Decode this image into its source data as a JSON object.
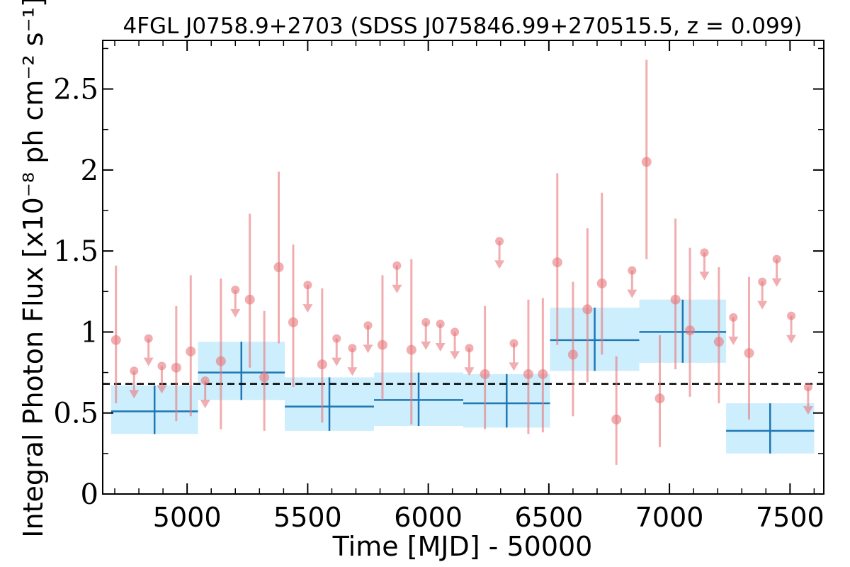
{
  "chart_data": {
    "type": "scatter",
    "title": "4FGL J0758.9+2703 (SDSS J075846.99+270515.5, z = 0.099)",
    "xlabel": "Time [MJD] - 50000",
    "ylabel": "Integral Photon Flux [x10⁻⁸ ph cm⁻² s⁻¹]",
    "xlim": [
      4650,
      7640
    ],
    "ylim": [
      0,
      2.8
    ],
    "x_ticks": [
      5000,
      5500,
      6000,
      6500,
      7000,
      7500
    ],
    "x_tick_labels": [
      "5000",
      "5500",
      "6000",
      "6500",
      "7000",
      "7500"
    ],
    "y_ticks": [
      0,
      0.5,
      1,
      1.5,
      2,
      2.5
    ],
    "y_tick_labels": [
      "0",
      "0.5",
      "1",
      "1.5",
      "2",
      "2.5"
    ],
    "reference_line": {
      "y": 0.68,
      "style": "dashed",
      "color": "#000000"
    },
    "colors": {
      "points": "#e8767a",
      "points_alpha": 0.6,
      "bins": "#1f77b4",
      "bin_fill": "#cdeefc"
    },
    "series": [
      {
        "kind": "detections",
        "points": [
          {
            "x": 4705,
            "y": 0.95,
            "lo": 0.56,
            "hi": 1.41
          },
          {
            "x": 4955,
            "y": 0.78,
            "lo": 0.45,
            "hi": 1.16
          },
          {
            "x": 5015,
            "y": 0.88,
            "lo": 0.48,
            "hi": 1.35
          },
          {
            "x": 5140,
            "y": 0.82,
            "lo": 0.4,
            "hi": 1.33
          },
          {
            "x": 5260,
            "y": 1.2,
            "lo": 0.78,
            "hi": 1.73
          },
          {
            "x": 5320,
            "y": 0.72,
            "lo": 0.39,
            "hi": 1.13
          },
          {
            "x": 5380,
            "y": 1.4,
            "lo": 0.93,
            "hi": 1.99
          },
          {
            "x": 5440,
            "y": 1.06,
            "lo": 0.66,
            "hi": 1.54
          },
          {
            "x": 5560,
            "y": 0.8,
            "lo": 0.44,
            "hi": 1.27
          },
          {
            "x": 5810,
            "y": 0.92,
            "lo": 0.58,
            "hi": 1.35
          },
          {
            "x": 5930,
            "y": 0.89,
            "lo": 0.43,
            "hi": 1.45
          },
          {
            "x": 6235,
            "y": 0.74,
            "lo": 0.4,
            "hi": 1.16
          },
          {
            "x": 6415,
            "y": 0.74,
            "lo": 0.37,
            "hi": 1.2
          },
          {
            "x": 6475,
            "y": 0.74,
            "lo": 0.38,
            "hi": 1.21
          },
          {
            "x": 6535,
            "y": 1.43,
            "lo": 0.92,
            "hi": 1.98
          },
          {
            "x": 6600,
            "y": 0.86,
            "lo": 0.48,
            "hi": 1.31
          },
          {
            "x": 6660,
            "y": 1.14,
            "lo": 0.69,
            "hi": 1.64
          },
          {
            "x": 6720,
            "y": 1.3,
            "lo": 0.86,
            "hi": 1.86
          },
          {
            "x": 6780,
            "y": 0.46,
            "lo": 0.18,
            "hi": 0.85
          },
          {
            "x": 6905,
            "y": 2.05,
            "lo": 1.45,
            "hi": 2.68
          },
          {
            "x": 6960,
            "y": 0.59,
            "lo": 0.29,
            "hi": 0.98
          },
          {
            "x": 7025,
            "y": 1.2,
            "lo": 0.77,
            "hi": 1.7
          },
          {
            "x": 7085,
            "y": 1.01,
            "lo": 0.6,
            "hi": 1.52
          },
          {
            "x": 7205,
            "y": 0.94,
            "lo": 0.56,
            "hi": 1.4
          },
          {
            "x": 7330,
            "y": 0.87,
            "lo": 0.46,
            "hi": 1.34
          }
        ]
      },
      {
        "kind": "upper_limits",
        "points": [
          {
            "x": 4780,
            "y": 0.76
          },
          {
            "x": 4840,
            "y": 0.96
          },
          {
            "x": 4895,
            "y": 0.79
          },
          {
            "x": 5075,
            "y": 0.7
          },
          {
            "x": 5200,
            "y": 1.26
          },
          {
            "x": 5500,
            "y": 1.29
          },
          {
            "x": 5620,
            "y": 0.96
          },
          {
            "x": 5685,
            "y": 0.9
          },
          {
            "x": 5750,
            "y": 1.04
          },
          {
            "x": 5870,
            "y": 1.41
          },
          {
            "x": 5990,
            "y": 1.06
          },
          {
            "x": 6050,
            "y": 1.05
          },
          {
            "x": 6110,
            "y": 1.0
          },
          {
            "x": 6170,
            "y": 0.9
          },
          {
            "x": 6295,
            "y": 1.56
          },
          {
            "x": 6355,
            "y": 0.93
          },
          {
            "x": 6845,
            "y": 1.38
          },
          {
            "x": 7145,
            "y": 1.49
          },
          {
            "x": 7265,
            "y": 1.09
          },
          {
            "x": 7385,
            "y": 1.31
          },
          {
            "x": 7445,
            "y": 1.45
          },
          {
            "x": 7505,
            "y": 1.1
          },
          {
            "x": 7575,
            "y": 0.66
          }
        ]
      },
      {
        "kind": "binned",
        "bins": [
          {
            "x0": 4685,
            "x1": 5045,
            "y": 0.51,
            "lo": 0.37,
            "hi": 0.67
          },
          {
            "x0": 5045,
            "x1": 5405,
            "y": 0.75,
            "lo": 0.58,
            "hi": 0.94
          },
          {
            "x0": 5405,
            "x1": 5775,
            "y": 0.54,
            "lo": 0.39,
            "hi": 0.72
          },
          {
            "x0": 5775,
            "x1": 6145,
            "y": 0.58,
            "lo": 0.42,
            "hi": 0.75
          },
          {
            "x0": 6145,
            "x1": 6505,
            "y": 0.56,
            "lo": 0.41,
            "hi": 0.74
          },
          {
            "x0": 6505,
            "x1": 6875,
            "y": 0.95,
            "lo": 0.76,
            "hi": 1.15
          },
          {
            "x0": 6875,
            "x1": 7235,
            "y": 1.0,
            "lo": 0.81,
            "hi": 1.2
          },
          {
            "x0": 7235,
            "x1": 7600,
            "y": 0.39,
            "lo": 0.25,
            "hi": 0.56
          }
        ]
      }
    ]
  }
}
